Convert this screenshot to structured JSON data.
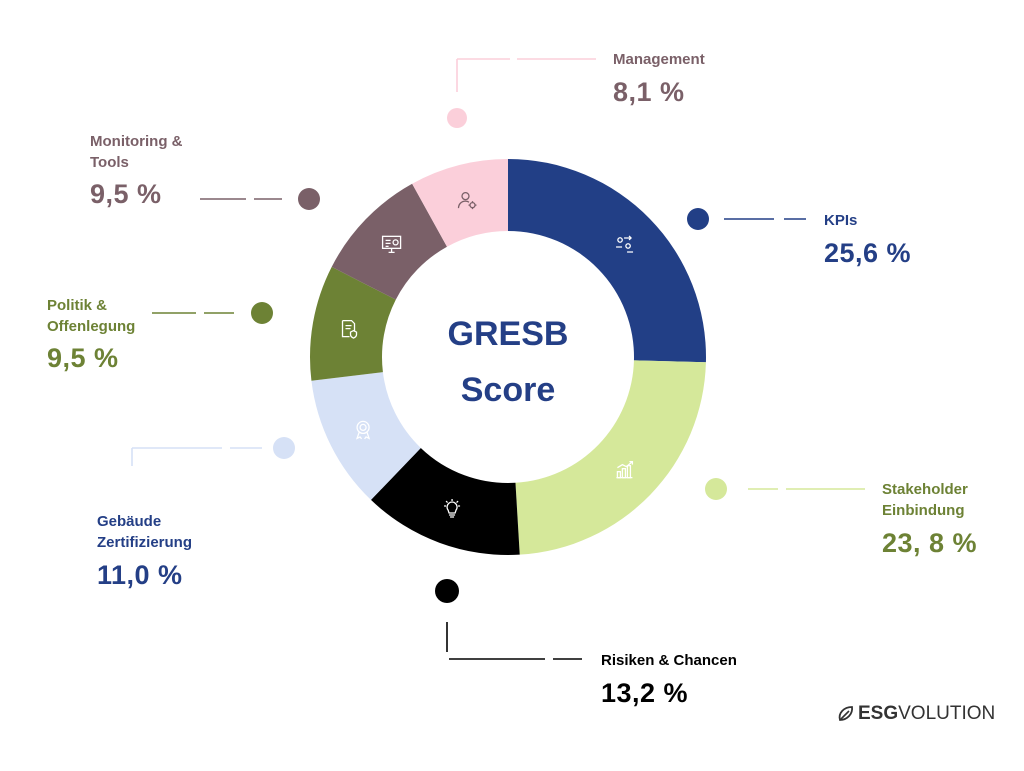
{
  "chart_data": {
    "type": "pie",
    "title": "GRESB\nScore",
    "series": [
      {
        "label": "KPIs",
        "value": 25.6,
        "value_text": "25,6 %",
        "color": "#223f86",
        "icon": "people-exchange-icon"
      },
      {
        "label": "Stakeholder\nEinbindung",
        "value": 23.8,
        "value_text": "23, 8 %",
        "color": "#d5e89a",
        "icon": "growth-chart-icon"
      },
      {
        "label": "Risiken & Chancen",
        "value": 13.2,
        "value_text": "13,2 %",
        "color": "#000000",
        "icon": "lightbulb-icon"
      },
      {
        "label": "Gebäude\nZertifizierung",
        "value": 11.0,
        "value_text": "11,0 %",
        "color": "#d6e1f6",
        "icon": "certificate-badge-icon"
      },
      {
        "label": "Politik &\nOffenlegung",
        "value": 9.5,
        "value_text": "9,5 %",
        "color": "#6d8235",
        "icon": "document-shield-icon"
      },
      {
        "label": "Monitoring &\nTools",
        "value": 9.5,
        "value_text": "9,5 %",
        "color": "#7a6068",
        "icon": "monitor-dashboard-icon"
      },
      {
        "label": "Management",
        "value": 8.1,
        "value_text": "8,1 %",
        "color": "#fbcfda",
        "icon": "person-gear-icon"
      }
    ],
    "label_colors": {
      "KPIs": "#243f86",
      "Stakeholder\nEinbindung": "#6d8235",
      "Risiken & Chancen": "#000000",
      "Gebäude\nZertifizierung": "#243f86",
      "Politik &\nOffenlegung": "#6d8235",
      "Monitoring &\nTools": "#7a6068",
      "Management": "#7a6068"
    }
  },
  "brand": {
    "prefix": "ESG",
    "suffix": "VOLUTION"
  }
}
